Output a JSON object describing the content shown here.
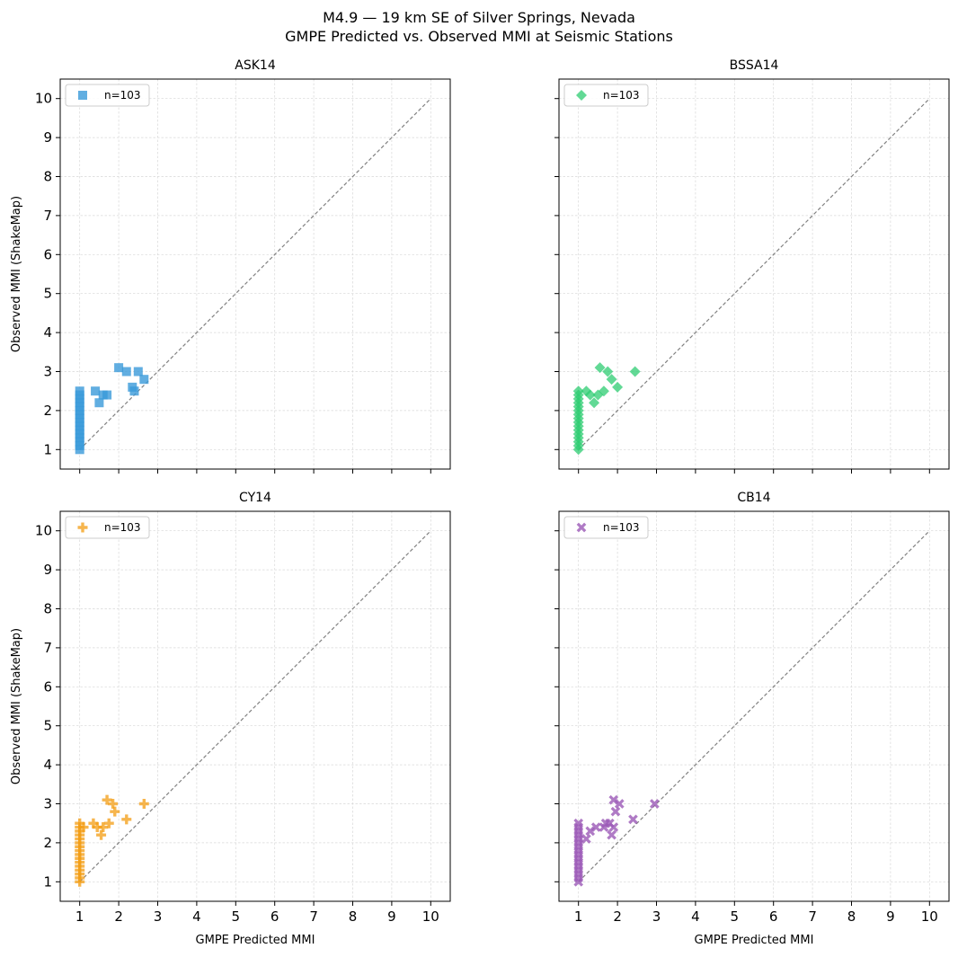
{
  "figure": {
    "title": "M4.9 — 19 km SE of Silver Springs, Nevada",
    "subtitle": "GMPE Predicted vs. Observed MMI at Seismic Stations"
  },
  "chart_data": [
    {
      "type": "scatter",
      "title": "ASK14",
      "xlabel": "",
      "ylabel": "Observed MMI (ShakeMap)",
      "xlim": [
        0.5,
        10.5
      ],
      "ylim": [
        0.5,
        10.5
      ],
      "xticks": [
        "1",
        "2",
        "3",
        "4",
        "5",
        "6",
        "7",
        "8",
        "9",
        "10"
      ],
      "yticks": [
        "1",
        "2",
        "3",
        "4",
        "5",
        "6",
        "7",
        "8",
        "9",
        "10"
      ],
      "show_xticklabels": false,
      "show_yticklabels": true,
      "grid": true,
      "legend": "upper-left",
      "reference_line": {
        "x": [
          1,
          10
        ],
        "y": [
          1,
          10
        ]
      },
      "series": [
        {
          "name": "n=103",
          "marker": "square",
          "color": "#3a9ad9",
          "points": [
            [
              1,
              1.0
            ],
            [
              1,
              1.1
            ],
            [
              1,
              1.2
            ],
            [
              1,
              1.3
            ],
            [
              1,
              1.4
            ],
            [
              1,
              1.5
            ],
            [
              1,
              1.6
            ],
            [
              1,
              1.7
            ],
            [
              1,
              1.8
            ],
            [
              1,
              1.9
            ],
            [
              1,
              2.0
            ],
            [
              1,
              2.1
            ],
            [
              1,
              2.2
            ],
            [
              1,
              2.3
            ],
            [
              1,
              2.4
            ],
            [
              1,
              2.5
            ],
            [
              1.4,
              2.5
            ],
            [
              1.5,
              2.2
            ],
            [
              1.6,
              2.4
            ],
            [
              1.7,
              2.4
            ],
            [
              2.0,
              3.1
            ],
            [
              2.2,
              3.0
            ],
            [
              2.35,
              2.6
            ],
            [
              2.4,
              2.5
            ],
            [
              2.5,
              3.0
            ],
            [
              2.65,
              2.8
            ]
          ]
        }
      ]
    },
    {
      "type": "scatter",
      "title": "BSSA14",
      "xlabel": "",
      "ylabel": "",
      "xlim": [
        0.5,
        10.5
      ],
      "ylim": [
        0.5,
        10.5
      ],
      "xticks": [
        "1",
        "2",
        "3",
        "4",
        "5",
        "6",
        "7",
        "8",
        "9",
        "10"
      ],
      "yticks": [
        "1",
        "2",
        "3",
        "4",
        "5",
        "6",
        "7",
        "8",
        "9",
        "10"
      ],
      "show_xticklabels": false,
      "show_yticklabels": false,
      "grid": true,
      "legend": "upper-left",
      "reference_line": {
        "x": [
          1,
          10
        ],
        "y": [
          1,
          10
        ]
      },
      "series": [
        {
          "name": "n=103",
          "marker": "diamond",
          "color": "#2ecc71",
          "points": [
            [
              1,
              1.0
            ],
            [
              1,
              1.1
            ],
            [
              1,
              1.2
            ],
            [
              1,
              1.3
            ],
            [
              1,
              1.4
            ],
            [
              1,
              1.5
            ],
            [
              1,
              1.6
            ],
            [
              1,
              1.7
            ],
            [
              1,
              1.8
            ],
            [
              1,
              1.9
            ],
            [
              1,
              2.0
            ],
            [
              1,
              2.1
            ],
            [
              1,
              2.2
            ],
            [
              1,
              2.3
            ],
            [
              1,
              2.4
            ],
            [
              1,
              2.5
            ],
            [
              1.2,
              2.5
            ],
            [
              1.3,
              2.4
            ],
            [
              1.4,
              2.2
            ],
            [
              1.5,
              2.4
            ],
            [
              1.55,
              3.1
            ],
            [
              1.65,
              2.5
            ],
            [
              1.75,
              3.0
            ],
            [
              1.85,
              2.8
            ],
            [
              2.0,
              2.6
            ],
            [
              2.45,
              3.0
            ]
          ]
        }
      ]
    },
    {
      "type": "scatter",
      "title": "CY14",
      "xlabel": "GMPE Predicted MMI",
      "ylabel": "Observed MMI (ShakeMap)",
      "xlim": [
        0.5,
        10.5
      ],
      "ylim": [
        0.5,
        10.5
      ],
      "xticks": [
        "1",
        "2",
        "3",
        "4",
        "5",
        "6",
        "7",
        "8",
        "9",
        "10"
      ],
      "yticks": [
        "1",
        "2",
        "3",
        "4",
        "5",
        "6",
        "7",
        "8",
        "9",
        "10"
      ],
      "show_xticklabels": true,
      "show_yticklabels": true,
      "grid": true,
      "legend": "upper-left",
      "reference_line": {
        "x": [
          1,
          10
        ],
        "y": [
          1,
          10
        ]
      },
      "series": [
        {
          "name": "n=103",
          "marker": "plus",
          "color": "#f39c12",
          "points": [
            [
              1,
              1.0
            ],
            [
              1,
              1.1
            ],
            [
              1,
              1.2
            ],
            [
              1,
              1.3
            ],
            [
              1,
              1.4
            ],
            [
              1,
              1.5
            ],
            [
              1,
              1.6
            ],
            [
              1,
              1.7
            ],
            [
              1,
              1.8
            ],
            [
              1,
              1.9
            ],
            [
              1,
              2.0
            ],
            [
              1,
              2.1
            ],
            [
              1,
              2.2
            ],
            [
              1,
              2.3
            ],
            [
              1,
              2.4
            ],
            [
              1,
              2.5
            ],
            [
              1.1,
              2.4
            ],
            [
              1.35,
              2.5
            ],
            [
              1.45,
              2.4
            ],
            [
              1.55,
              2.2
            ],
            [
              1.6,
              2.4
            ],
            [
              1.7,
              3.1
            ],
            [
              1.75,
              2.5
            ],
            [
              1.85,
              3.0
            ],
            [
              1.9,
              2.8
            ],
            [
              2.2,
              2.6
            ],
            [
              2.65,
              3.0
            ]
          ]
        }
      ]
    },
    {
      "type": "scatter",
      "title": "CB14",
      "xlabel": "GMPE Predicted MMI",
      "ylabel": "",
      "xlim": [
        0.5,
        10.5
      ],
      "ylim": [
        0.5,
        10.5
      ],
      "xticks": [
        "1",
        "2",
        "3",
        "4",
        "5",
        "6",
        "7",
        "8",
        "9",
        "10"
      ],
      "yticks": [
        "1",
        "2",
        "3",
        "4",
        "5",
        "6",
        "7",
        "8",
        "9",
        "10"
      ],
      "show_xticklabels": true,
      "show_yticklabels": false,
      "grid": true,
      "legend": "upper-left",
      "reference_line": {
        "x": [
          1,
          10
        ],
        "y": [
          1,
          10
        ]
      },
      "series": [
        {
          "name": "n=103",
          "marker": "x",
          "color": "#9b59b6",
          "points": [
            [
              1,
              1.0
            ],
            [
              1,
              1.1
            ],
            [
              1,
              1.2
            ],
            [
              1,
              1.3
            ],
            [
              1,
              1.4
            ],
            [
              1,
              1.5
            ],
            [
              1,
              1.6
            ],
            [
              1,
              1.7
            ],
            [
              1,
              1.8
            ],
            [
              1,
              1.9
            ],
            [
              1,
              2.0
            ],
            [
              1,
              2.1
            ],
            [
              1,
              2.2
            ],
            [
              1,
              2.3
            ],
            [
              1,
              2.4
            ],
            [
              1,
              2.5
            ],
            [
              1.2,
              2.1
            ],
            [
              1.3,
              2.3
            ],
            [
              1.45,
              2.4
            ],
            [
              1.65,
              2.4
            ],
            [
              1.7,
              2.5
            ],
            [
              1.8,
              2.5
            ],
            [
              1.85,
              2.2
            ],
            [
              1.9,
              3.1
            ],
            [
              1.95,
              2.8
            ],
            [
              2.05,
              3.0
            ],
            [
              1.9,
              2.4
            ],
            [
              2.4,
              2.6
            ],
            [
              2.95,
              3.0
            ]
          ]
        }
      ]
    }
  ]
}
